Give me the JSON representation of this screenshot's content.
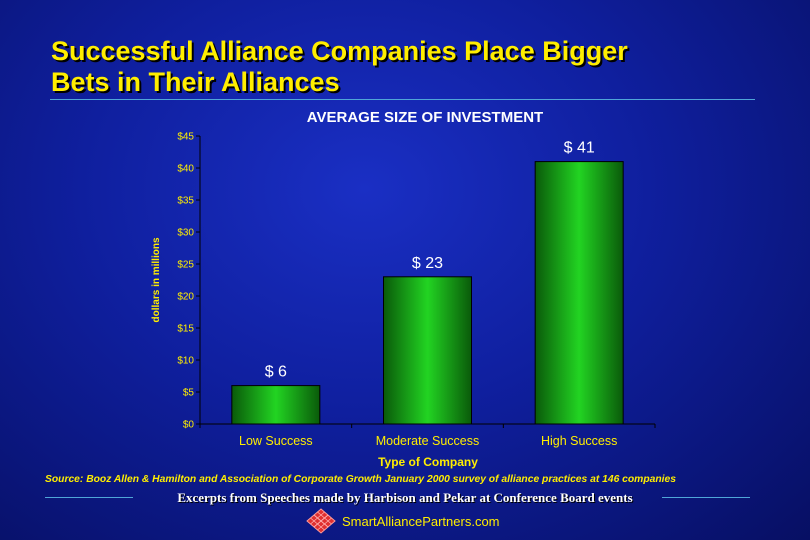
{
  "slide": {
    "title_line1": "Successful Alliance Companies Place Bigger",
    "title_line2": "Bets in Their Alliances",
    "source": "Source:  Booz Allen & Hamilton and Association of Corporate Growth January 2000 survey of alliance practices at 146 companies",
    "excerpt": "Excerpts from Speeches made by Harbison and Pekar at Conference Board events",
    "brand": "SmartAlliancePartners.com",
    "logo_icon": "diamond-grid-logo-icon"
  },
  "colors": {
    "bar_light": "#22d422",
    "bar_dark": "#0a5a0a",
    "title": "#ffee00",
    "accent_rule": "#4fa6d8"
  },
  "chart_data": {
    "type": "bar",
    "title": "AVERAGE SIZE OF INVESTMENT",
    "xlabel": "Type of Company",
    "ylabel": "dollars in millions",
    "categories": [
      "Low Success",
      "Moderate Success",
      "High Success"
    ],
    "values": [
      6,
      23,
      41
    ],
    "data_labels": [
      "$ 6",
      "$ 23",
      "$ 41"
    ],
    "ylim": [
      0,
      45
    ],
    "yticks": [
      0,
      5,
      10,
      15,
      20,
      25,
      30,
      35,
      40,
      45
    ],
    "ytick_labels": [
      "$0",
      "$5",
      "$10",
      "$15",
      "$20",
      "$25",
      "$30",
      "$35",
      "$40",
      "$45"
    ],
    "grid": false,
    "legend": "none"
  }
}
